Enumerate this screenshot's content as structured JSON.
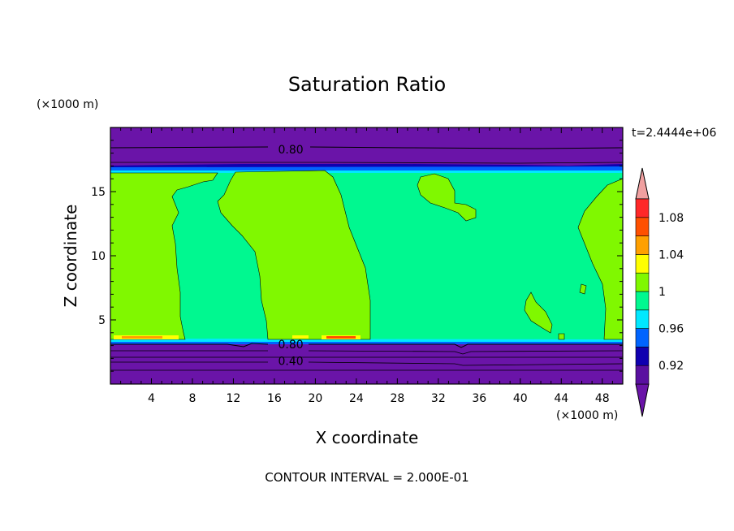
{
  "chart_data": {
    "type": "heatmap",
    "title": "Saturation Ratio",
    "xlabel": "X coordinate",
    "ylabel": "Z coordinate",
    "x_unit": "(×1000 m)",
    "y_unit": "(×1000 m)",
    "time_label": "t=2.4444e+06",
    "footer": "CONTOUR INTERVAL = 2.000E-01",
    "xlim": [
      0,
      50
    ],
    "ylim": [
      0,
      20
    ],
    "x_ticks": [
      4,
      8,
      12,
      16,
      20,
      24,
      28,
      32,
      36,
      40,
      44,
      48
    ],
    "y_ticks": [
      5,
      10,
      15
    ],
    "contour_labels": [
      {
        "text": "0.80",
        "x": 17.6,
        "y": 18.3
      },
      {
        "text": "0.80",
        "x": 17.6,
        "y": 3.1
      },
      {
        "text": "0.40",
        "x": 17.6,
        "y": 1.8
      }
    ],
    "colorbar": {
      "levels": [
        0.92,
        0.94,
        0.96,
        0.98,
        1.0,
        1.02,
        1.04,
        1.06,
        1.08,
        1.1
      ],
      "tick_labels": [
        "0.92",
        "0.96",
        "1",
        "1.04",
        "1.08"
      ],
      "colors": [
        "#5a10a0",
        "#1000b0",
        "#0064ff",
        "#00e8ff",
        "#00f890",
        "#80f800",
        "#ffff00",
        "#ffa000",
        "#ff5000",
        "#ff2828"
      ],
      "under_color": "#6a14a8",
      "over_color": "#f0a0a0"
    }
  }
}
